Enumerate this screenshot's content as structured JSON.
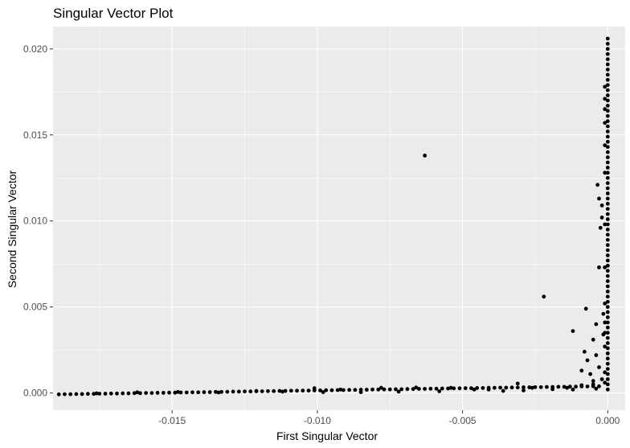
{
  "chart_data": {
    "type": "scatter",
    "title": "Singular Vector Plot",
    "xlabel": "First Singular Vector",
    "ylabel": "Second Singular Vector",
    "xlim": [
      -0.0191,
      0.0006
    ],
    "ylim": [
      -0.001,
      0.0213
    ],
    "x_ticks": [
      -0.015,
      -0.01,
      -0.005,
      0.0
    ],
    "x_tick_labels": [
      "-0.015",
      "-0.010",
      "-0.005",
      "0.000"
    ],
    "y_ticks": [
      0.0,
      0.005,
      0.01,
      0.015,
      0.02
    ],
    "y_tick_labels": [
      "0.000",
      "0.005",
      "0.010",
      "0.015",
      "0.020"
    ],
    "grid": true,
    "legend": "none",
    "colors": {
      "panel_background": "#ebebeb",
      "grid_major": "#ffffff",
      "point": "#000000"
    },
    "points": [
      [
        -0.0189,
        -8e-05
      ],
      [
        -0.0187,
        -7e-05
      ],
      [
        -0.0185,
        -7e-05
      ],
      [
        -0.0183,
        -6e-05
      ],
      [
        -0.0181,
        -6e-05
      ],
      [
        -0.0179,
        -5e-05
      ],
      [
        -0.0177,
        -5e-05
      ],
      [
        -0.0175,
        -4e-05
      ],
      [
        -0.0173,
        -4e-05
      ],
      [
        -0.0171,
        -3e-05
      ],
      [
        -0.0169,
        -3e-05
      ],
      [
        -0.0167,
        -2e-05
      ],
      [
        -0.0165,
        -2e-05
      ],
      [
        -0.0163,
        -1e-05
      ],
      [
        -0.0161,
        -1e-05
      ],
      [
        -0.0159,
        0.0
      ],
      [
        -0.0157,
        0.0
      ],
      [
        -0.0155,
        1e-05
      ],
      [
        -0.0153,
        1e-05
      ],
      [
        -0.0151,
        2e-05
      ],
      [
        -0.0149,
        2e-05
      ],
      [
        -0.0147,
        3e-05
      ],
      [
        -0.0145,
        3e-05
      ],
      [
        -0.0143,
        4e-05
      ],
      [
        -0.0141,
        4e-05
      ],
      [
        -0.0139,
        5e-05
      ],
      [
        -0.0137,
        5e-05
      ],
      [
        -0.0135,
        6e-05
      ],
      [
        -0.0133,
        6e-05
      ],
      [
        -0.0131,
        7e-05
      ],
      [
        -0.0129,
        8e-05
      ],
      [
        -0.0127,
        8e-05
      ],
      [
        -0.0125,
        9e-05
      ],
      [
        -0.0123,
        9e-05
      ],
      [
        -0.0121,
        0.0001
      ],
      [
        -0.0119,
        0.0001
      ],
      [
        -0.0117,
        0.00011
      ],
      [
        -0.0115,
        0.00011
      ],
      [
        -0.0113,
        0.00012
      ],
      [
        -0.0111,
        0.00012
      ],
      [
        -0.0109,
        0.00013
      ],
      [
        -0.0107,
        0.00013
      ],
      [
        -0.0105,
        0.00014
      ],
      [
        -0.0103,
        0.00014
      ],
      [
        -0.0101,
        0.00015
      ],
      [
        -0.0099,
        0.00015
      ],
      [
        -0.0097,
        0.00016
      ],
      [
        -0.0095,
        0.00016
      ],
      [
        -0.0093,
        0.00017
      ],
      [
        -0.0091,
        0.00017
      ],
      [
        -0.0089,
        0.00018
      ],
      [
        -0.0087,
        0.00018
      ],
      [
        -0.0085,
        0.00019
      ],
      [
        -0.0083,
        0.00019
      ],
      [
        -0.0081,
        0.0002
      ],
      [
        -0.0079,
        0.0002
      ],
      [
        -0.0077,
        0.00021
      ],
      [
        -0.0075,
        0.00021
      ],
      [
        -0.0073,
        0.00022
      ],
      [
        -0.0071,
        0.00022
      ],
      [
        -0.0069,
        0.00023
      ],
      [
        -0.0067,
        0.00023
      ],
      [
        -0.0065,
        0.00024
      ],
      [
        -0.0063,
        0.00024
      ],
      [
        -0.0061,
        0.00025
      ],
      [
        -0.0059,
        0.00025
      ],
      [
        -0.0057,
        0.00026
      ],
      [
        -0.0055,
        0.00026
      ],
      [
        -0.0053,
        0.00027
      ],
      [
        -0.0051,
        0.00027
      ],
      [
        -0.0049,
        0.00028
      ],
      [
        -0.0047,
        0.00028
      ],
      [
        -0.0045,
        0.00029
      ],
      [
        -0.0043,
        0.00029
      ],
      [
        -0.0041,
        0.0003
      ],
      [
        -0.0039,
        0.0003
      ],
      [
        -0.0037,
        0.00031
      ],
      [
        -0.0035,
        0.00031
      ],
      [
        -0.0033,
        0.00032
      ],
      [
        -0.0031,
        0.00032
      ],
      [
        -0.0029,
        0.00033
      ],
      [
        -0.0027,
        0.00033
      ],
      [
        -0.0025,
        0.00034
      ],
      [
        -0.0023,
        0.00034
      ],
      [
        -0.0021,
        0.00035
      ],
      [
        -0.0019,
        0.00035
      ],
      [
        -0.0017,
        0.00036
      ],
      [
        -0.0015,
        0.00036
      ],
      [
        -0.0013,
        0.00037
      ],
      [
        -0.0011,
        0.00037
      ],
      [
        -0.0009,
        0.00038
      ],
      [
        -0.0007,
        0.00038
      ],
      [
        -0.0005,
        0.00039
      ],
      [
        -0.0003,
        0.00039
      ],
      [
        -0.0176,
        -2e-05
      ],
      [
        -0.0162,
        4e-05
      ],
      [
        -0.0148,
        6e-05
      ],
      [
        -0.0134,
        3e-05
      ],
      [
        -0.0121,
        0.00012
      ],
      [
        -0.0112,
        8e-05
      ],
      [
        -0.0101,
        0.00028
      ],
      [
        -0.0098,
        5e-05
      ],
      [
        -0.0092,
        0.0002
      ],
      [
        -0.0085,
        5e-05
      ],
      [
        -0.0078,
        0.0003
      ],
      [
        -0.0072,
        8e-05
      ],
      [
        -0.0066,
        0.00032
      ],
      [
        -0.0058,
        0.0001
      ],
      [
        -0.0054,
        0.0003
      ],
      [
        -0.0046,
        0.0002
      ],
      [
        -0.0041,
        0.0002
      ],
      [
        -0.0036,
        0.00012
      ],
      [
        -0.0031,
        0.00055
      ],
      [
        -0.0029,
        0.00015
      ],
      [
        -0.0026,
        0.0003
      ],
      [
        -0.0019,
        0.00022
      ],
      [
        -0.0014,
        0.0003
      ],
      [
        -0.0012,
        0.0002
      ],
      [
        -0.0009,
        0.00045
      ],
      [
        -0.0005,
        0.0005
      ],
      [
        -0.0004,
        0.00025
      ],
      [
        -0.0063,
        0.0138
      ],
      [
        -0.0022,
        0.0056
      ],
      [
        -0.0012,
        0.0036
      ],
      [
        -0.0008,
        0.0024
      ],
      [
        -0.00075,
        0.0049
      ],
      [
        -0.0007,
        0.0019
      ],
      [
        -0.0009,
        0.0013
      ],
      [
        -0.0006,
        0.0011
      ],
      [
        -0.0005,
        0.0007
      ],
      [
        -0.0005,
        0.0031
      ],
      [
        -0.0004,
        0.004
      ],
      [
        -0.0004,
        0.0022
      ],
      [
        -0.0003,
        0.0015
      ],
      [
        -0.0003,
        0.0073
      ],
      [
        -0.00035,
        0.0121
      ],
      [
        -0.0003,
        0.0113
      ],
      [
        -0.0002,
        0.0109
      ],
      [
        -0.0002,
        0.0102
      ],
      [
        -0.00025,
        0.0096
      ],
      [
        -0.00015,
        0.0046
      ],
      [
        -0.00015,
        0.0034
      ],
      [
        -0.0001,
        0.0027
      ],
      [
        -0.0001,
        0.0012
      ],
      [
        -0.0002,
        0.0008
      ],
      [
        -0.0001,
        0.0006
      ],
      [
        -0.0001,
        0.0073
      ],
      [
        -0.0001,
        0.0098
      ],
      [
        -0.0001,
        0.0128
      ],
      [
        -0.0001,
        0.0144
      ],
      [
        -0.0001,
        0.0157
      ],
      [
        -0.0001,
        0.0165
      ],
      [
        -0.0001,
        0.0171
      ],
      [
        -0.0001,
        0.0178
      ],
      [
        -0.0001,
        0.0035
      ],
      [
        -0.0001,
        0.0041
      ],
      [
        -0.0001,
        0.0052
      ],
      [
        0.0,
        0.0206
      ],
      [
        0.0,
        0.0203
      ],
      [
        0.0,
        0.02
      ],
      [
        0.0,
        0.0197
      ],
      [
        0.0,
        0.0194
      ],
      [
        0.0,
        0.0191
      ],
      [
        0.0,
        0.0188
      ],
      [
        0.0,
        0.0185
      ],
      [
        0.0,
        0.0182
      ],
      [
        0.0,
        0.0179
      ],
      [
        0.0,
        0.0176
      ],
      [
        0.0,
        0.0173
      ],
      [
        0.0,
        0.017
      ],
      [
        0.0,
        0.0167
      ],
      [
        0.0,
        0.0164
      ],
      [
        0.0,
        0.0161
      ],
      [
        0.0,
        0.0158
      ],
      [
        0.0,
        0.0155
      ],
      [
        0.0,
        0.0152
      ],
      [
        0.0,
        0.0149
      ],
      [
        0.0,
        0.0146
      ],
      [
        0.0,
        0.0143
      ],
      [
        0.0,
        0.014
      ],
      [
        0.0,
        0.0137
      ],
      [
        0.0,
        0.0134
      ],
      [
        0.0,
        0.0131
      ],
      [
        0.0,
        0.0128
      ],
      [
        0.0,
        0.0125
      ],
      [
        0.0,
        0.0122
      ],
      [
        0.0,
        0.0119
      ],
      [
        0.0,
        0.0116
      ],
      [
        0.0,
        0.0113
      ],
      [
        0.0,
        0.011
      ],
      [
        0.0,
        0.0107
      ],
      [
        0.0,
        0.0104
      ],
      [
        0.0,
        0.0101
      ],
      [
        0.0,
        0.0098
      ],
      [
        0.0,
        0.0095
      ],
      [
        0.0,
        0.0092
      ],
      [
        0.0,
        0.0089
      ],
      [
        0.0,
        0.0086
      ],
      [
        0.0,
        0.0083
      ],
      [
        0.0,
        0.008
      ],
      [
        0.0,
        0.0077
      ],
      [
        0.0,
        0.0074
      ],
      [
        0.0,
        0.0071
      ],
      [
        0.0,
        0.0068
      ],
      [
        0.0,
        0.0065
      ],
      [
        0.0,
        0.0062
      ],
      [
        0.0,
        0.0059
      ],
      [
        0.0,
        0.0056
      ],
      [
        0.0,
        0.0053
      ],
      [
        0.0,
        0.005
      ],
      [
        0.0,
        0.0047
      ],
      [
        0.0,
        0.0044
      ],
      [
        0.0,
        0.0041
      ],
      [
        0.0,
        0.0038
      ],
      [
        0.0,
        0.0035
      ],
      [
        0.0,
        0.0032
      ],
      [
        0.0,
        0.0029
      ],
      [
        0.0,
        0.0026
      ],
      [
        0.0,
        0.0023
      ],
      [
        0.0,
        0.002
      ],
      [
        0.0,
        0.0017
      ],
      [
        0.0,
        0.0014
      ],
      [
        0.0,
        0.0011
      ],
      [
        0.0,
        0.0008
      ],
      [
        0.0,
        0.0005
      ],
      [
        0.0,
        0.0002
      ]
    ]
  }
}
